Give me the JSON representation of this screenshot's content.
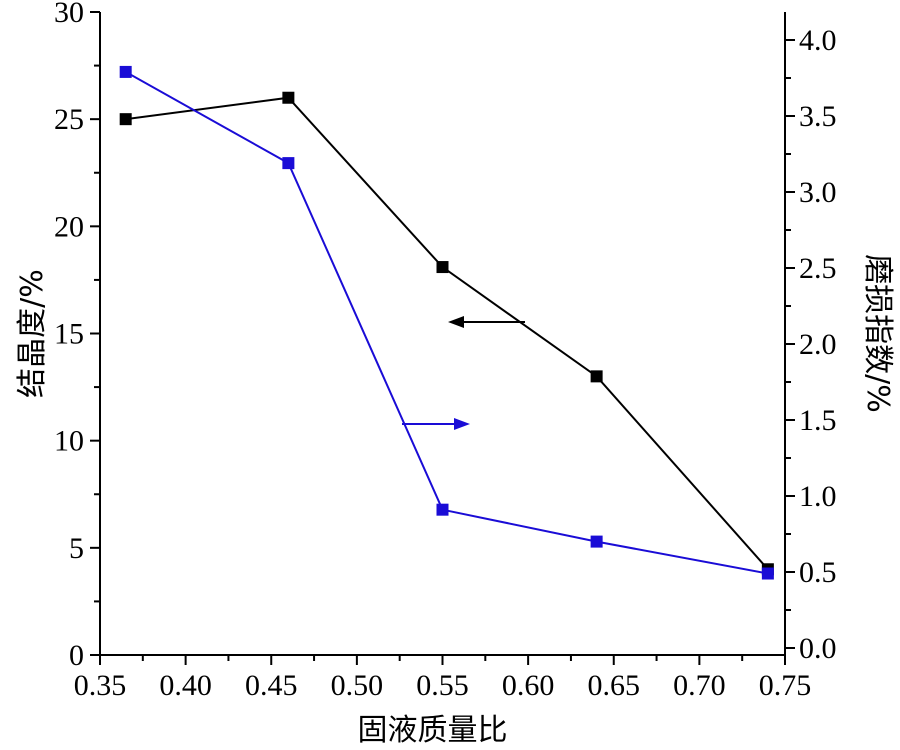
{
  "chart_data": {
    "type": "line",
    "title": "",
    "xlabel": "固液质量比",
    "ylabel_left": "结晶度/%",
    "ylabel_right": "磨损指数/%",
    "xlim": [
      0.35,
      0.75
    ],
    "ylim_left": [
      0,
      30
    ],
    "ylim_right": [
      0.0,
      4.2
    ],
    "x_ticks": [
      "0.35",
      "0.40",
      "0.45",
      "0.50",
      "0.55",
      "0.60",
      "0.65",
      "0.70",
      "0.75"
    ],
    "y_left_ticks": [
      "0",
      "5",
      "10",
      "15",
      "20",
      "25",
      "30"
    ],
    "y_right_ticks": [
      "0.0",
      "0.5",
      "1.0",
      "1.5",
      "2.0",
      "2.5",
      "3.0",
      "3.5",
      "4.0"
    ],
    "series": [
      {
        "axis": "left",
        "color": "#000000",
        "marker": "square",
        "x": [
          0.365,
          0.46,
          0.55,
          0.64,
          0.74
        ],
        "y": [
          25.0,
          26.0,
          18.1,
          13.0,
          4.0
        ]
      },
      {
        "axis": "right",
        "color": "#1a0cd6",
        "marker": "square",
        "x": [
          0.365,
          0.46,
          0.55,
          0.64,
          0.74
        ],
        "y": [
          3.79,
          3.19,
          0.91,
          0.7,
          0.49
        ]
      }
    ],
    "annotations": [
      {
        "type": "arrow",
        "direction": "left",
        "color": "#000000",
        "points_to": "left-axis"
      },
      {
        "type": "arrow",
        "direction": "right",
        "color": "#1a0cd6",
        "points_to": "right-axis"
      }
    ],
    "grid": false,
    "legend": "none"
  }
}
